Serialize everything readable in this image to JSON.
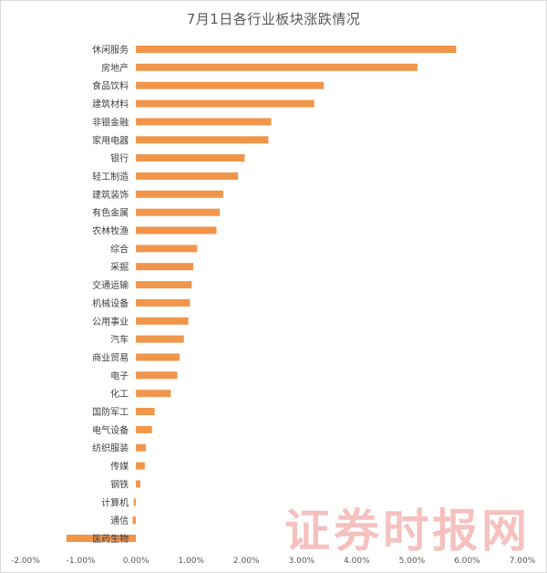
{
  "chart_data": {
    "type": "bar",
    "orientation": "horizontal",
    "title": "7月1日各行业板块涨跌情况",
    "xlabel": "",
    "ylabel": "",
    "xlim": [
      -0.02,
      0.07
    ],
    "x_ticks": [
      "-2.00%",
      "-1.00%",
      "0.00%",
      "1.00%",
      "2.00%",
      "3.00%",
      "4.00%",
      "5.00%",
      "6.00%",
      "7.00%"
    ],
    "grid": false,
    "bar_color": "#f0954a",
    "categories": [
      "休闲服务",
      "房地产",
      "食品饮料",
      "建筑材料",
      "非银金融",
      "家用电器",
      "银行",
      "轻工制造",
      "建筑装饰",
      "有色金属",
      "农林牧渔",
      "综合",
      "采掘",
      "交通运输",
      "机械设备",
      "公用事业",
      "汽车",
      "商业贸易",
      "电子",
      "化工",
      "国防军工",
      "电气设备",
      "纺织服装",
      "传媒",
      "钢铁",
      "计算机",
      "通信",
      "医药生物"
    ],
    "values": [
      0.058,
      0.051,
      0.034,
      0.0323,
      0.0245,
      0.024,
      0.0197,
      0.0185,
      0.0158,
      0.0152,
      0.0146,
      0.0111,
      0.0104,
      0.0101,
      0.0098,
      0.0095,
      0.0087,
      0.0079,
      0.0075,
      0.0063,
      0.0034,
      0.0029,
      0.0018,
      0.0016,
      0.0008,
      -0.0004,
      -0.0006,
      -0.0126
    ]
  },
  "watermark": "证券时报网"
}
